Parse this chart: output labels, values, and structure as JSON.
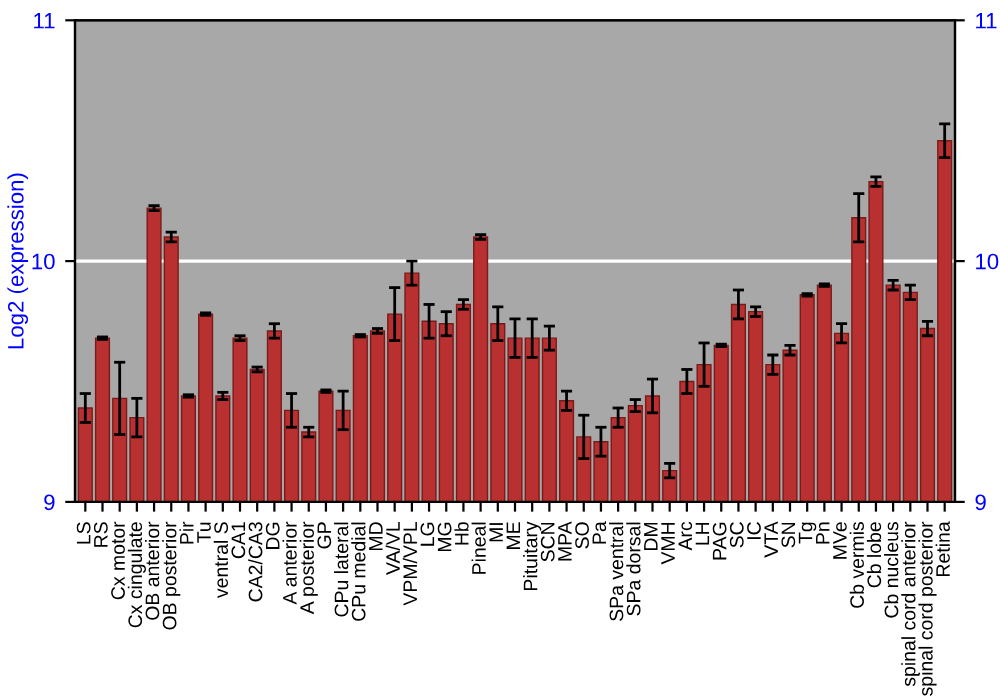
{
  "chart_data": {
    "type": "bar",
    "ylabel": "Log2 (expression)",
    "categories": [
      "LS",
      "RS",
      "Cx motor",
      "Cx cingulate",
      "OB anterior",
      "OB posterior",
      "Pir",
      "Tu",
      "ventral S",
      "CA1",
      "CA2/CA3",
      "DG",
      "A anterior",
      "A posterior",
      "GP",
      "CPu lateral",
      "CPu medial",
      "MD",
      "VA/VL",
      "VPM/VPL",
      "LG",
      "MG",
      "Hb",
      "Pineal",
      "MI",
      "ME",
      "Pituitary",
      "SCN",
      "MPA",
      "SO",
      "Pa",
      "SPa ventral",
      "SPa dorsal",
      "DM",
      "VMH",
      "Arc",
      "LH",
      "PAG",
      "SC",
      "IC",
      "VTA",
      "SN",
      "Tg",
      "Pn",
      "MVe",
      "Cb vermis",
      "Cb lobe",
      "Cb nucleus",
      "spinal cord anterior",
      "spinal cord posterior",
      "Retina"
    ],
    "values": [
      9.39,
      9.68,
      9.43,
      9.35,
      10.22,
      10.1,
      9.44,
      9.78,
      9.44,
      9.68,
      9.55,
      9.71,
      9.38,
      9.29,
      9.46,
      9.38,
      9.69,
      9.71,
      9.78,
      9.95,
      9.75,
      9.74,
      9.82,
      10.1,
      9.74,
      9.68,
      9.68,
      9.68,
      9.42,
      9.27,
      9.25,
      9.35,
      9.4,
      9.44,
      9.13,
      9.5,
      9.57,
      9.65,
      9.82,
      9.79,
      9.57,
      9.63,
      9.86,
      9.9,
      9.7,
      10.18,
      10.33,
      9.9,
      9.87,
      9.72,
      10.5
    ],
    "errors": [
      0.06,
      0.005,
      0.15,
      0.08,
      0.01,
      0.02,
      0.005,
      0.005,
      0.015,
      0.01,
      0.01,
      0.03,
      0.07,
      0.02,
      0.005,
      0.08,
      0.005,
      0.01,
      0.11,
      0.05,
      0.07,
      0.05,
      0.02,
      0.01,
      0.07,
      0.08,
      0.08,
      0.05,
      0.04,
      0.09,
      0.06,
      0.04,
      0.025,
      0.07,
      0.03,
      0.05,
      0.09,
      0.005,
      0.06,
      0.02,
      0.04,
      0.02,
      0.005,
      0.005,
      0.04,
      0.1,
      0.02,
      0.02,
      0.03,
      0.03,
      0.07
    ],
    "color": "#b83030",
    "ylim": [
      9,
      11
    ],
    "yticks": [
      9,
      10,
      11
    ],
    "y2lim": [
      9,
      11
    ],
    "y2ticks": [
      9,
      10,
      11
    ],
    "grid": "y"
  }
}
